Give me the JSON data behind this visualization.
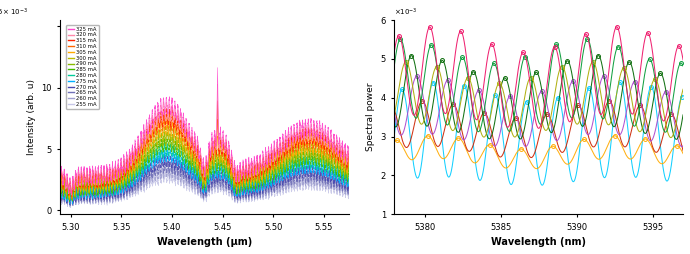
{
  "currents": [
    255,
    260,
    265,
    270,
    275,
    280,
    285,
    290,
    300,
    305,
    310,
    315,
    320,
    325
  ],
  "colors_left": [
    "#c8c8e8",
    "#a0a0d0",
    "#7070b8",
    "#4848b0",
    "#00b0ff",
    "#00cc99",
    "#44bb00",
    "#88bb00",
    "#bbbb00",
    "#ffaa00",
    "#ff6600",
    "#ff2200",
    "#ff88aa",
    "#ff44cc"
  ],
  "xlim_left": [
    5.29,
    5.575
  ],
  "ylim_left": [
    -0.0003,
    0.0155
  ],
  "ylabel_left": "Intensity (arb. u)",
  "xlabel_left": "Wavelength (μm)",
  "xlim_right": [
    5378,
    5397
  ],
  "ylim_right": [
    0.001,
    0.006
  ],
  "ylabel_right": "Spectral power",
  "xlabel_right": "Wavelength (nm)",
  "legend_currents": [
    325,
    320,
    315,
    310,
    305,
    300,
    290,
    285,
    280,
    275,
    270,
    265,
    260,
    255
  ],
  "right_curves": [
    {
      "color": "#00ccff",
      "base": 0.00185,
      "amp": 0.0023,
      "phase": 0.0
    },
    {
      "color": "#ffaa00",
      "base": 0.0023,
      "amp": 0.00055,
      "phase": 1.1
    },
    {
      "color": "#cc2200",
      "base": 0.0026,
      "amp": 0.0011,
      "phase": 2.2
    },
    {
      "color": "#aa44cc",
      "base": 0.0029,
      "amp": 0.0014,
      "phase": 3.3
    },
    {
      "color": "#006600",
      "base": 0.0031,
      "amp": 0.0017,
      "phase": 4.4
    },
    {
      "color": "#aaaa00",
      "base": 0.00315,
      "amp": 0.0015,
      "phase": 5.5
    },
    {
      "color": "#009933",
      "base": 0.0033,
      "amp": 0.0019,
      "phase": 6.6
    },
    {
      "color": "#ee1166",
      "base": 0.0034,
      "amp": 0.0021,
      "phase": 0.7
    }
  ],
  "mode_period_nm": 2.05
}
